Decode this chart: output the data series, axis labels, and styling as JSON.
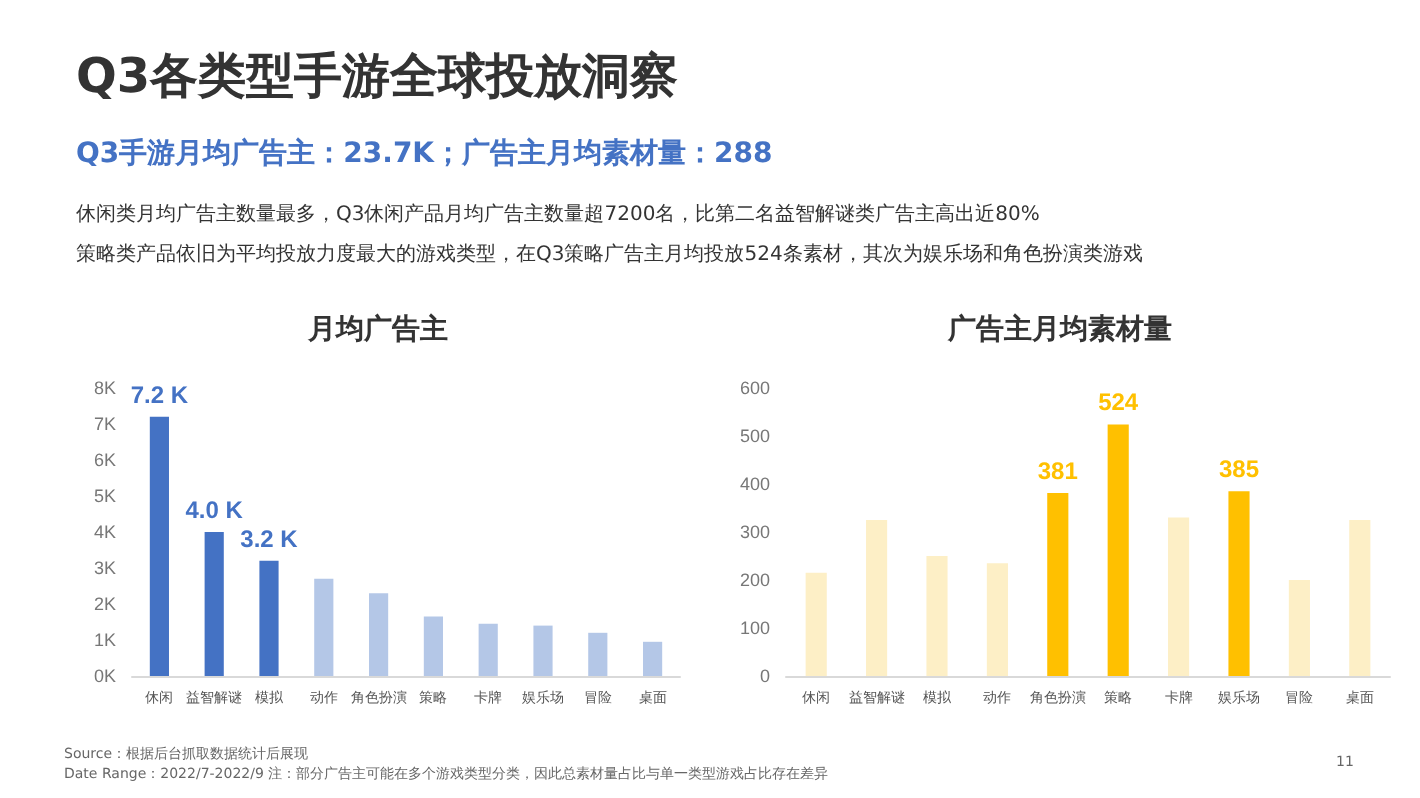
{
  "chart_data": [
    {
      "type": "bar",
      "title": "月均广告主",
      "annotations": [
        "Q3各类型手游全球投放洞察",
        "Q3手游月均广告主：23.7K；广告主月均素材量：288",
        "休闲类月均广告主数量最多，Q3休闲产品月均广告主数量超7200名，比第二名益智解谜类广告主高出近80%",
        "策略类产品依旧为平均投放力度最大的游戏类型，在Q3策略广告主月均投放524条素材，其次为娱乐场和角色扮演类游戏",
        "Source：根据后台抓取数据统计后展现",
        "Date Range：2022/7-2022/9  注：部分广告主可能在多个游戏类型分类，因此总素材量占比与单一类型游戏占比存在差异",
        "11"
      ],
      "categories": [
        "休闲",
        "益智解谜",
        "模拟",
        "动作",
        "角色扮演",
        "策略",
        "卡牌",
        "娱乐场",
        "冒险",
        "桌面"
      ],
      "values": [
        7.2,
        4.0,
        3.2,
        2.7,
        2.3,
        1.65,
        1.45,
        1.4,
        1.2,
        0.95
      ],
      "colors": [
        "#4472c4",
        "#4472c4",
        "#4472c4",
        "#b4c7e7",
        "#b4c7e7",
        "#b4c7e7",
        "#b4c7e7",
        "#b4c7e7",
        "#b4c7e7",
        "#b4c7e7"
      ],
      "value_labels": [
        "7.2 K",
        "4.0 K",
        "3.2 K",
        null,
        null,
        null,
        null,
        null,
        null,
        null
      ],
      "ylim": [
        0,
        8
      ],
      "yticks": [
        {
          "value": 0,
          "label": "0K"
        },
        {
          "value": 1,
          "label": "1K"
        },
        {
          "value": 2,
          "label": "2K"
        },
        {
          "value": 3,
          "label": "3K"
        },
        {
          "value": 4,
          "label": "4K"
        },
        {
          "value": 5,
          "label": "5K"
        },
        {
          "value": 6,
          "label": "6K"
        },
        {
          "value": 7,
          "label": "7K"
        },
        {
          "value": 8,
          "label": "8K"
        }
      ],
      "grid": false
    },
    {
      "type": "bar",
      "title": "广告主月均素材量",
      "categories": [
        "休闲",
        "益智解谜",
        "模拟",
        "动作",
        "角色扮演",
        "策略",
        "卡牌",
        "娱乐场",
        "冒险",
        "桌面"
      ],
      "values": [
        215,
        325,
        250,
        235,
        381,
        524,
        330,
        385,
        200,
        325
      ],
      "colors": [
        "#fdefc6",
        "#fdefc6",
        "#fdefc6",
        "#fdefc6",
        "#ffc000",
        "#ffc000",
        "#fdefc6",
        "#ffc000",
        "#fdefc6",
        "#fdefc6"
      ],
      "value_labels": [
        null,
        null,
        null,
        null,
        "381",
        "524",
        null,
        "385",
        null,
        null
      ],
      "ylim": [
        0,
        600
      ],
      "yticks": [
        0,
        100,
        200,
        300,
        400,
        500,
        600
      ],
      "grid": false
    }
  ]
}
